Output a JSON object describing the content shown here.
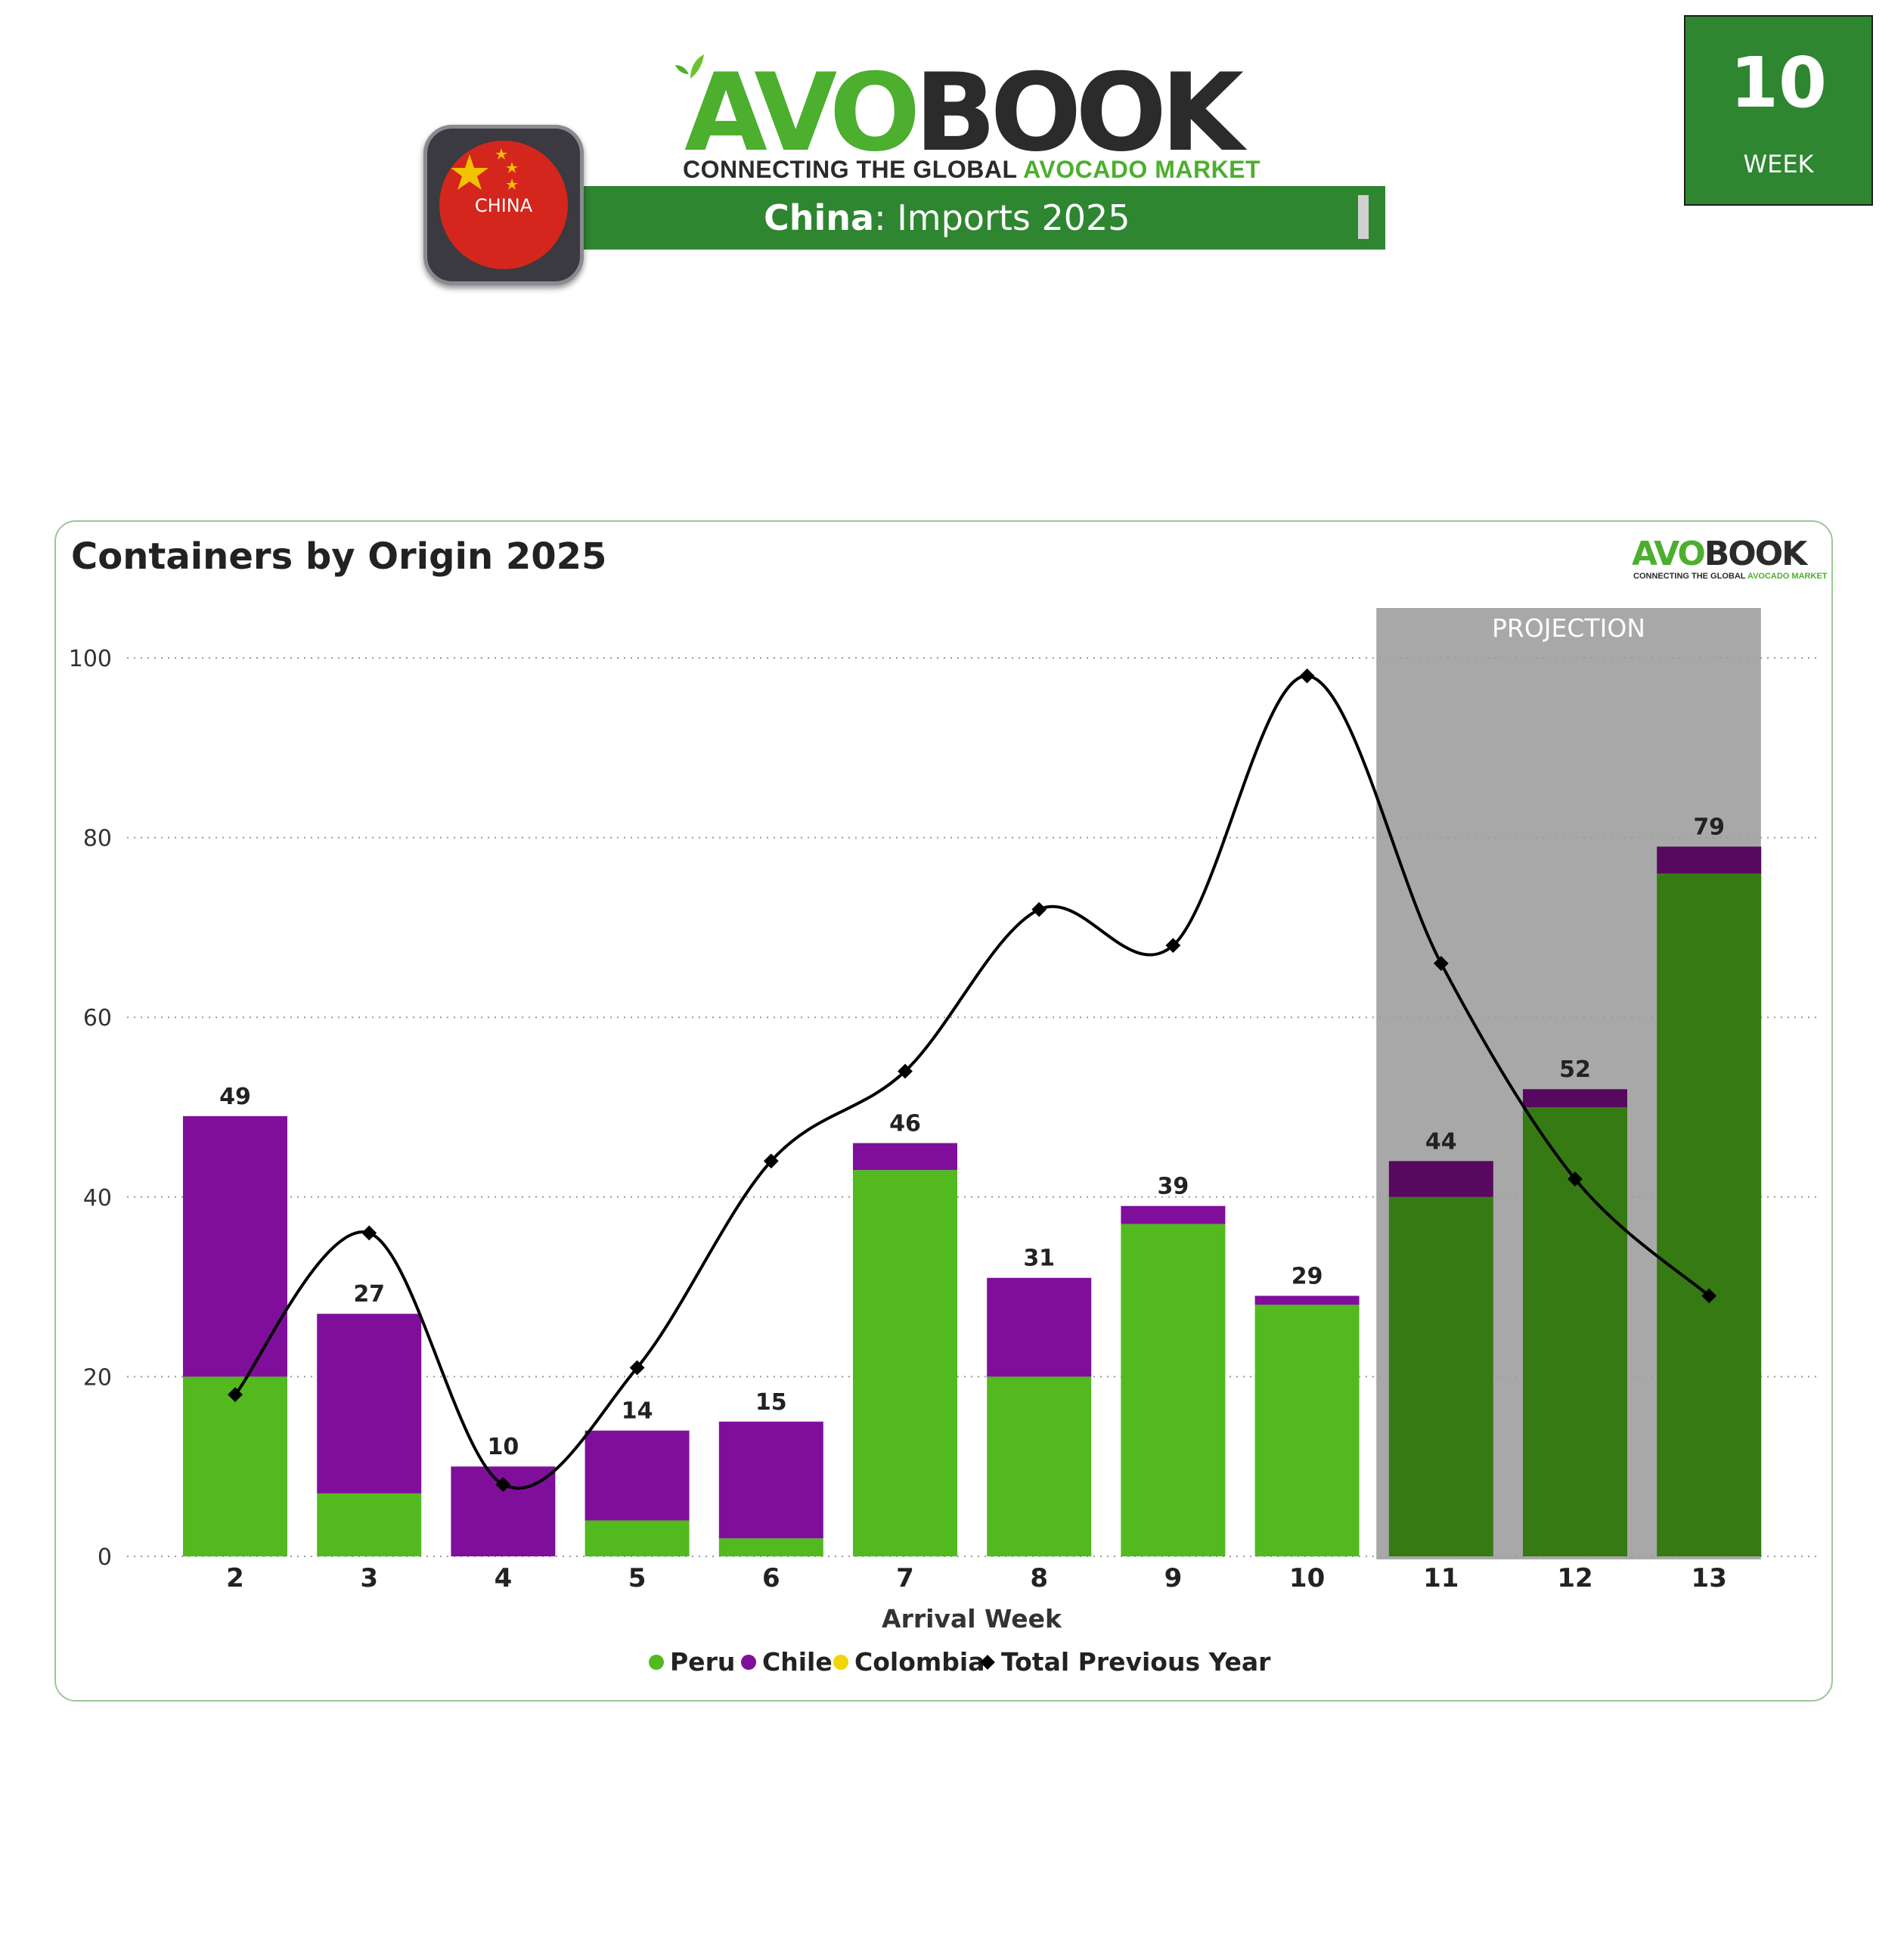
{
  "header": {
    "logo_part1": "AVO",
    "logo_part2": "BOOK",
    "tagline_part1": "CONNECTING THE GLOBAL ",
    "tagline_part2": "AVOCADO MARKET",
    "title_bold": "China",
    "title_rest": ": Imports 2025",
    "flag_label": "CHINA",
    "week_number": "10",
    "week_label": "WEEK"
  },
  "colors": {
    "brand_green": "#2e8630",
    "peru": "#52b91f",
    "chile": "#7f0f9b",
    "colombia": "#f2d600",
    "total_previous_year": "#000000",
    "projection_shade": "#a8a8a8"
  },
  "chart_data": {
    "type": "bar",
    "title": "Containers by Origin 2025",
    "xlabel": "Arrival Week",
    "ylabel": "",
    "ylim": [
      0,
      100
    ],
    "yticks": [
      0,
      20,
      40,
      60,
      80,
      100
    ],
    "grid": "dotted horizontal",
    "stacked": true,
    "categories": [
      "2",
      "3",
      "4",
      "5",
      "6",
      "7",
      "8",
      "9",
      "10",
      "11",
      "12",
      "13"
    ],
    "series": [
      {
        "name": "Peru",
        "type": "bar",
        "values": [
          20,
          7,
          0,
          4,
          2,
          43,
          20,
          37,
          28,
          40,
          50,
          76
        ]
      },
      {
        "name": "Chile",
        "type": "bar",
        "values": [
          29,
          20,
          10,
          10,
          13,
          3,
          11,
          2,
          1,
          4,
          2,
          3
        ]
      },
      {
        "name": "Colombia",
        "type": "bar",
        "values": [
          0,
          0,
          0,
          0,
          0,
          0,
          0,
          0,
          0,
          0,
          0,
          0
        ]
      },
      {
        "name": "Total Previous Year",
        "type": "line",
        "values": [
          18,
          36,
          8,
          21,
          44,
          54,
          72,
          68,
          98,
          66,
          42,
          29
        ]
      }
    ],
    "totals": [
      49,
      27,
      10,
      14,
      15,
      46,
      31,
      39,
      29,
      44,
      52,
      79
    ],
    "projection": {
      "label": "PROJECTION",
      "from_category": "11",
      "to_category": "13"
    },
    "legend_position": "bottom-center"
  },
  "mini_logo": {
    "part1": "AVO",
    "part2": "BOOK",
    "tag1": "CONNECTING THE GLOBAL ",
    "tag2": "AVOCADO MARKET"
  }
}
